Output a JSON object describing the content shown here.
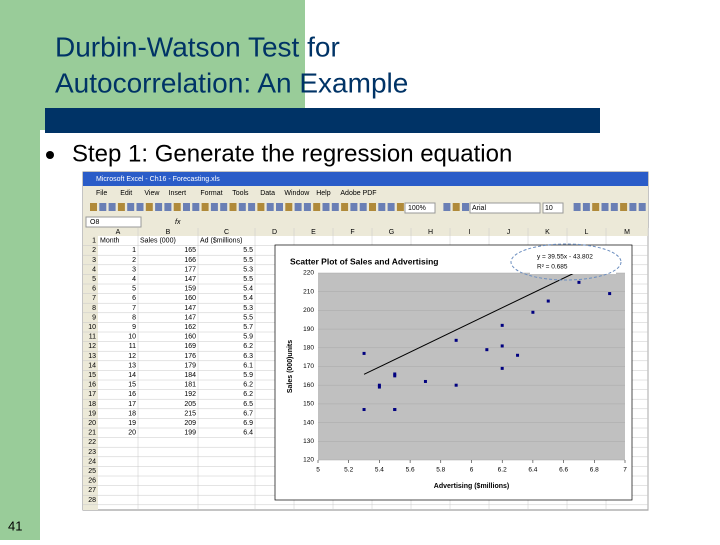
{
  "slide": {
    "title_line1": "Durbin-Watson Test for",
    "title_line2": "Autocorrelation: An Example",
    "bullet": "Step 1: Generate the regression equation",
    "page_number": "41"
  },
  "excel": {
    "window_title": "Microsoft Excel - Ch16 - Forecasting.xls",
    "menu": [
      "File",
      "Edit",
      "View",
      "Insert",
      "Format",
      "Tools",
      "Data",
      "Window",
      "Help",
      "Adobe PDF"
    ],
    "name_box": "O8",
    "fx": "fx",
    "zoom": "100%",
    "font": "Arial",
    "font_size": "10",
    "columns": [
      "A",
      "B",
      "C",
      "D",
      "E",
      "F",
      "G",
      "H",
      "I",
      "J",
      "K",
      "L",
      "M"
    ],
    "rows": [
      1,
      2,
      3,
      4,
      5,
      6,
      7,
      8,
      9,
      10,
      11,
      12,
      13,
      14,
      15,
      16,
      17,
      18,
      19,
      20,
      21,
      22,
      23,
      24,
      25,
      26,
      27,
      28
    ],
    "header": [
      "Month",
      "Sales (000)",
      "Ad ($millions)"
    ],
    "months": [
      1,
      2,
      3,
      4,
      5,
      6,
      7,
      8,
      9,
      10,
      11,
      12,
      13,
      14,
      15,
      16,
      17,
      18,
      19,
      20
    ]
  },
  "chart_data": {
    "type": "scatter",
    "title": "Scatter Plot of Sales and Advertising",
    "x_label": "Advertising ($millions)",
    "y_label": "Sales (000)units",
    "x": [
      5.5,
      5.5,
      5.3,
      5.5,
      5.4,
      5.4,
      5.3,
      5.5,
      5.7,
      5.9,
      6.2,
      6.3,
      6.1,
      5.9,
      6.2,
      6.2,
      6.5,
      6.7,
      6.9,
      6.4
    ],
    "values": [
      165,
      166,
      177,
      147,
      159,
      160,
      147,
      147,
      162,
      160,
      169,
      176,
      179,
      184,
      181,
      192,
      205,
      215,
      209,
      199
    ],
    "color": "#000080",
    "xlim": [
      5,
      7
    ],
    "ylim": [
      120,
      220
    ],
    "xticks": [
      5,
      5.2,
      5.4,
      5.6,
      5.8,
      6,
      6.2,
      6.4,
      6.6,
      6.8,
      7
    ],
    "yticks": [
      120,
      130,
      140,
      150,
      160,
      170,
      180,
      190,
      200,
      210,
      220
    ],
    "trendline": {
      "slope": 39.55,
      "intercept": -43.802,
      "equation": "y = 39.55x - 43.802",
      "r_squared": "R² = 0.685"
    }
  }
}
